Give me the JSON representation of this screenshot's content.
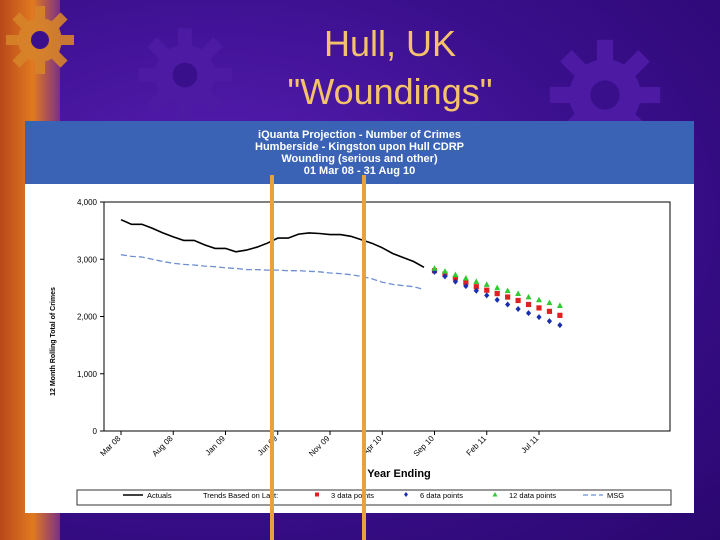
{
  "slide": {
    "title_line1": "Hull, UK",
    "title_line2": "\"Woundings\""
  },
  "chart_header": {
    "line1": "iQuanta Projection - Number of Crimes",
    "line2": "Humberside - Kingston upon Hull CDRP",
    "line3": "Wounding (serious and other)",
    "line4": "01 Mar 08 - 31 Aug 10"
  },
  "chart_data": {
    "type": "line",
    "title": "iQuanta Projection - Number of Crimes",
    "subtitle": "Humberside - Kingston upon Hull CDRP / Wounding (serious and other) / 01 Mar 08 - 31 Aug 10",
    "xlabel": "Year Ending",
    "ylabel": "12 Month Rolling Total of Crimes",
    "ylim": [
      0,
      4000
    ],
    "y_ticks": [
      "0",
      "1,000",
      "2,000",
      "3,000",
      "4,000"
    ],
    "x_tick_labels": [
      "Mar 08",
      "Aug 08",
      "Jan 09",
      "Jun 09",
      "Nov 09",
      "Apr 10",
      "Sep 10",
      "Feb 11",
      "Jul 11"
    ],
    "x_months": [
      "Mar 08",
      "Apr 08",
      "May 08",
      "Jun 08",
      "Jul 08",
      "Aug 08",
      "Sep 08",
      "Oct 08",
      "Nov 08",
      "Dec 08",
      "Jan 09",
      "Feb 09",
      "Mar 09",
      "Apr 09",
      "May 09",
      "Jun 09",
      "Jul 09",
      "Aug 09",
      "Sep 09",
      "Oct 09",
      "Nov 09",
      "Dec 09",
      "Jan 10",
      "Feb 10",
      "Mar 10",
      "Apr 10",
      "May 10",
      "Jun 10",
      "Jul 10",
      "Aug 10",
      "Sep 10",
      "Oct 10",
      "Nov 10",
      "Dec 10",
      "Jan 11",
      "Feb 11",
      "Mar 11",
      "Apr 11",
      "May 11",
      "Jun 11",
      "Jul 11",
      "Aug 11"
    ],
    "series": [
      {
        "name": "Actuals",
        "color": "#000000",
        "style": "line",
        "values": [
          3690,
          3610,
          3610,
          3540,
          3460,
          3390,
          3330,
          3330,
          3250,
          3190,
          3190,
          3130,
          3160,
          3210,
          3280,
          3370,
          3370,
          3440,
          3460,
          3450,
          3430,
          3430,
          3400,
          3340,
          3280,
          3200,
          3100,
          3030,
          2960,
          2860
        ]
      },
      {
        "name": "MSG",
        "color": "#6f8fd0",
        "style": "dashed",
        "values": [
          3080,
          3050,
          3040,
          3000,
          2960,
          2930,
          2910,
          2900,
          2880,
          2870,
          2850,
          2840,
          2820,
          2820,
          2810,
          2810,
          2800,
          2800,
          2790,
          2780,
          2760,
          2750,
          2730,
          2700,
          2660,
          2600,
          2560,
          2540,
          2520,
          2470
        ]
      },
      {
        "name": "3 data points",
        "color": "#e02020",
        "style": "square",
        "start_index": 30,
        "values": [
          2800,
          2740,
          2670,
          2590,
          2520,
          2460,
          2400,
          2340,
          2280,
          2210,
          2150,
          2090,
          2020
        ]
      },
      {
        "name": "6 data points",
        "color": "#1a2fb0",
        "style": "diamond",
        "start_index": 30,
        "values": [
          2780,
          2700,
          2610,
          2530,
          2450,
          2370,
          2290,
          2210,
          2130,
          2060,
          1990,
          1920,
          1850
        ]
      },
      {
        "name": "12 data points",
        "color": "#2fcc2f",
        "style": "triangle",
        "start_index": 30,
        "values": [
          2840,
          2790,
          2730,
          2670,
          2610,
          2560,
          2500,
          2450,
          2400,
          2340,
          2290,
          2240,
          2190
        ]
      }
    ],
    "legend": {
      "placement": "bottom",
      "actuals": "Actuals",
      "trends_label": "Trends Based on Last:",
      "three": "3 data points",
      "six": "6 data points",
      "twelve": "12 data points",
      "msg": "MSG"
    },
    "grid": false
  }
}
